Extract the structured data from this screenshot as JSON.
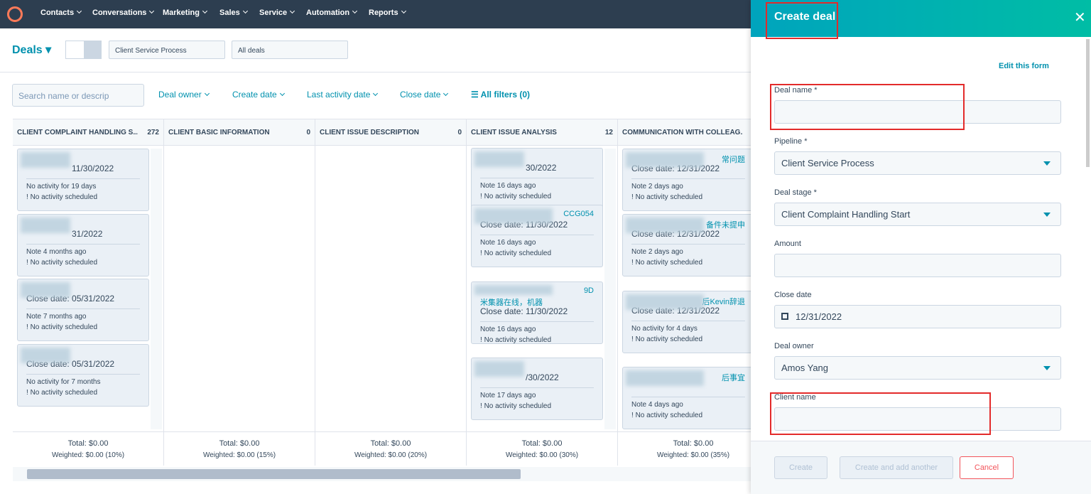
{
  "nav": {
    "items": [
      "Contacts",
      "Conversations",
      "Marketing",
      "Sales",
      "Service",
      "Automation",
      "Reports"
    ]
  },
  "toolbar": {
    "title": "Deals",
    "pipeline": "Client Service Process",
    "view": "All deals"
  },
  "filters": {
    "search_placeholder": "Search name or descrip",
    "items": [
      "Deal owner",
      "Create date",
      "Last activity date",
      "Close date"
    ],
    "all_filters": "All filters (0)"
  },
  "board": {
    "columns": [
      {
        "name": "CLIENT COMPLAINT HANDLING S...",
        "count": "272",
        "total": "Total: $0.00",
        "weighted": "Weighted: $0.00 (10%)",
        "cards": [
          {
            "close": "11/30/2022",
            "note": "No activity for 19 days",
            "sched": "No activity scheduled"
          },
          {
            "close": "31/2022",
            "note": "Note 4 months ago",
            "sched": "No activity scheduled"
          },
          {
            "close": "Close date: 05/31/2022",
            "note": "Note 7 months ago",
            "sched": "No activity scheduled"
          },
          {
            "close": "Close date: 05/31/2022",
            "note": "No activity for 7 months",
            "sched": "No activity scheduled"
          }
        ]
      },
      {
        "name": "CLIENT BASIC INFORMATION",
        "count": "0",
        "total": "Total: $0.00",
        "weighted": "Weighted: $0.00 (15%)",
        "cards": []
      },
      {
        "name": "CLIENT ISSUE DESCRIPTION",
        "count": "0",
        "total": "Total: $0.00",
        "weighted": "Weighted: $0.00 (20%)",
        "cards": []
      },
      {
        "name": "CLIENT ISSUE ANALYSIS",
        "count": "12",
        "total": "Total: $0.00",
        "weighted": "Weighted: $0.00 (30%)",
        "cards": [
          {
            "close": "30/2022",
            "note": "Note 16 days ago",
            "sched": "No activity scheduled"
          },
          {
            "title": "CCG054",
            "close": "Close date: 11/30/2022",
            "note": "Note 16 days ago",
            "sched": "No activity scheduled"
          },
          {
            "title": "9D",
            "subtitle": "米集器在线，机器",
            "close": "Close date: 11/30/2022",
            "note": "Note 16 days ago",
            "sched": "No activity scheduled"
          },
          {
            "close": "/30/2022",
            "note": "Note 17 days ago",
            "sched": "No activity scheduled"
          }
        ]
      },
      {
        "name": "COMMUNICATION WITH COLLEAG...",
        "count": "",
        "total": "Total: $0.00",
        "weighted": "Weighted: $0.00 (35%)",
        "cards": [
          {
            "title": "常问题",
            "close": "Close date: 12/31/2022",
            "note": "Note 2 days ago",
            "sched": "No activity scheduled"
          },
          {
            "title": "备件未提申",
            "close": "Close date: 12/31/2022",
            "note": "Note 2 days ago",
            "sched": "No activity scheduled"
          },
          {
            "title": "后Kevin辞退",
            "close": "Close date: 12/31/2022",
            "note": "No activity for 4 days",
            "sched": "No activity scheduled"
          },
          {
            "title": "后事宜",
            "close": "",
            "note": "Note 4 days ago",
            "sched": "No activity scheduled"
          }
        ]
      }
    ]
  },
  "panel": {
    "title": "Create deal",
    "edit_link": "Edit this form",
    "fields": [
      {
        "label": "Deal name *",
        "value": ""
      },
      {
        "label": "Pipeline *",
        "value": "Client Service Process"
      },
      {
        "label": "Deal stage *",
        "value": "Client Complaint Handling Start"
      },
      {
        "label": "Amount",
        "value": ""
      },
      {
        "label": "Close date",
        "value": "12/31/2022"
      },
      {
        "label": "Deal owner",
        "value": "Amos Yang"
      },
      {
        "label": "Client name",
        "value": ""
      }
    ],
    "buttons": [
      "Create",
      "Create and add another",
      "Cancel"
    ]
  }
}
